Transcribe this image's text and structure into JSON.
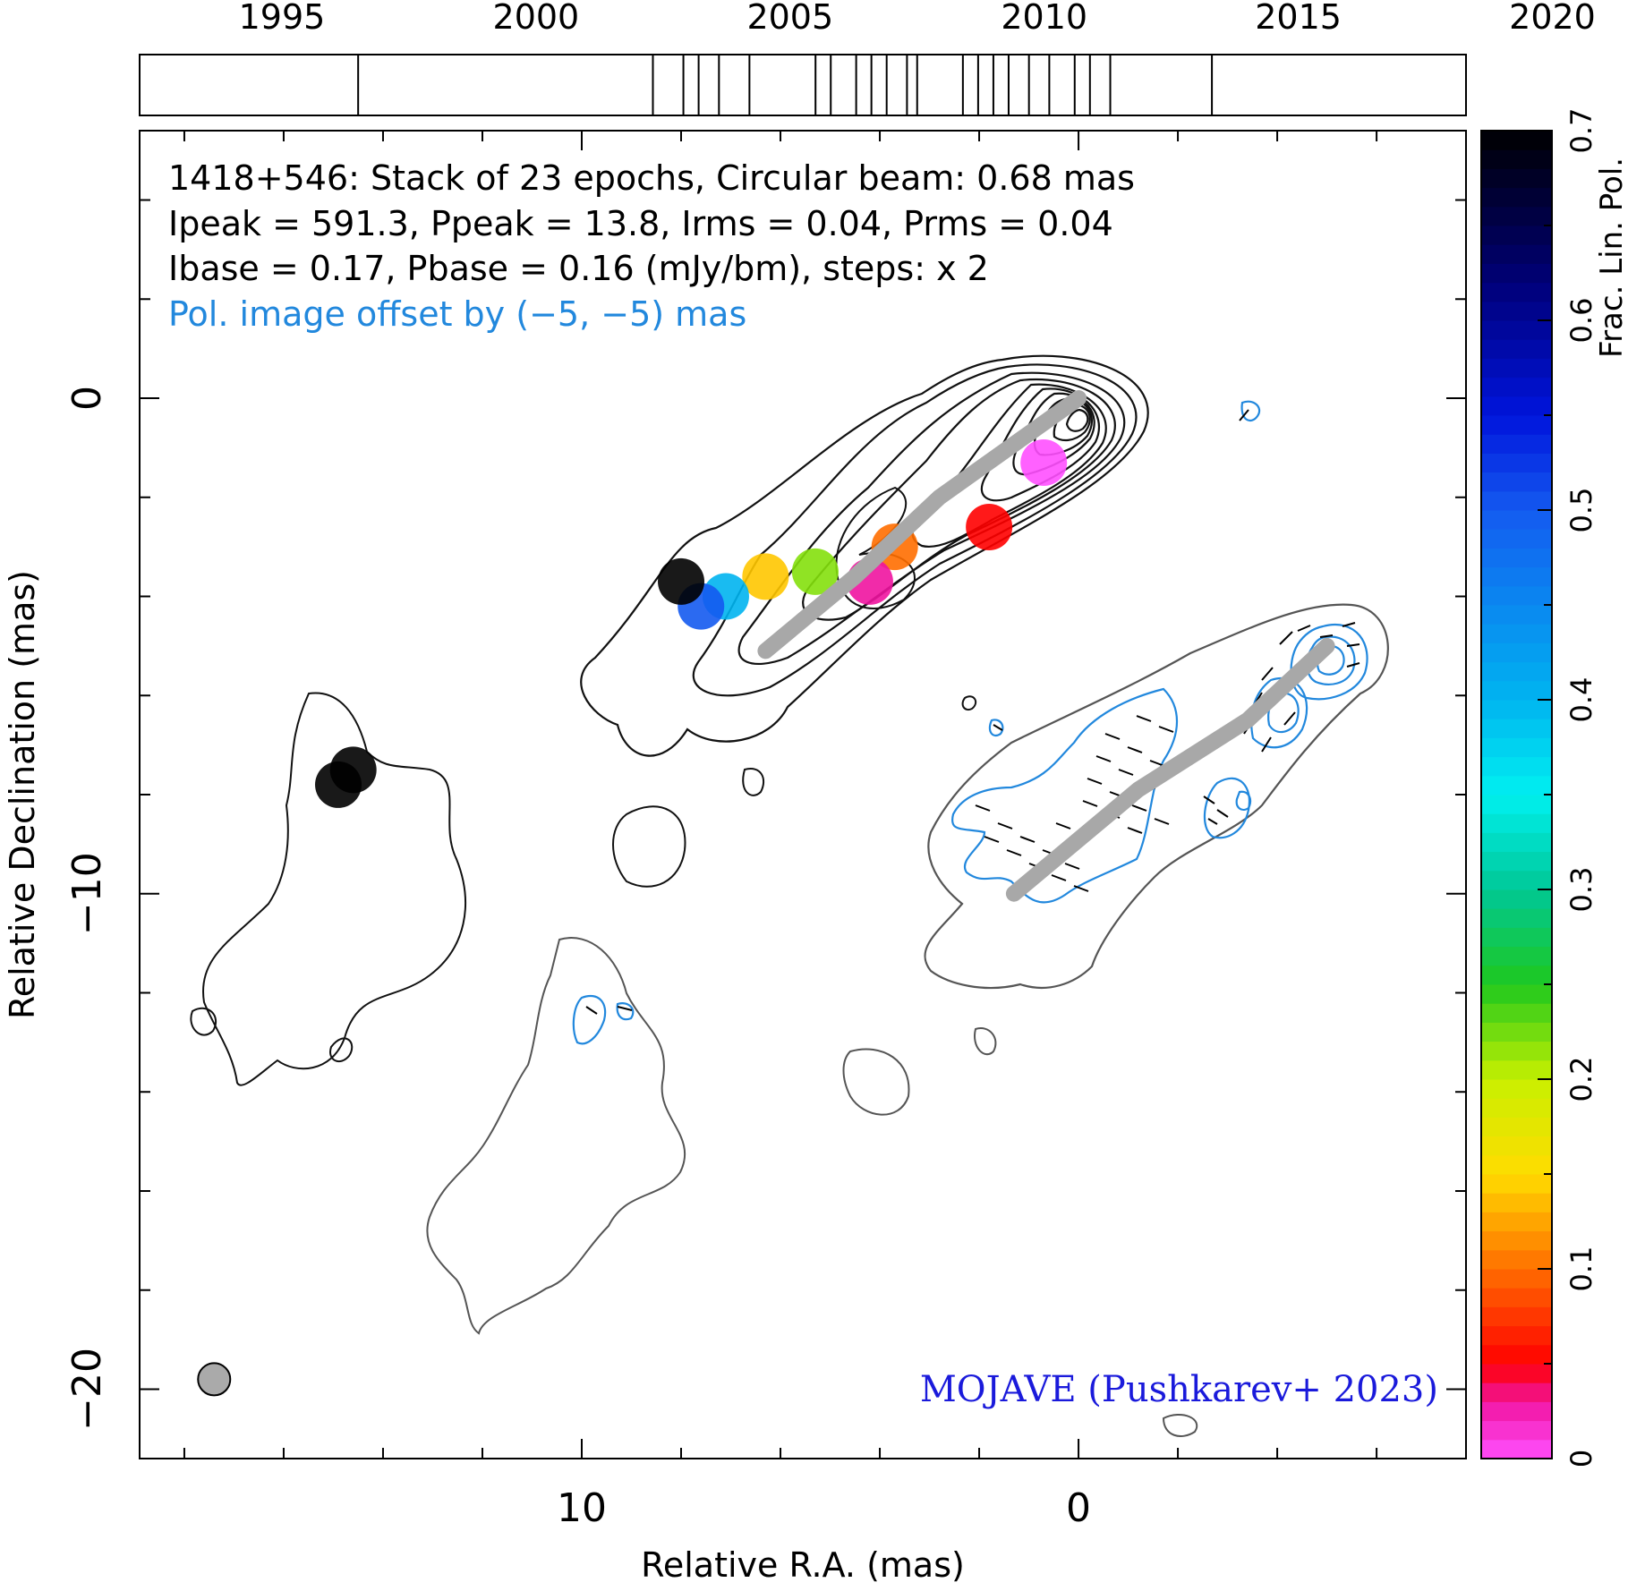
{
  "chart_data": {
    "type": "contour",
    "title": "1418+546: Stack of 23 epochs, Circular beam: 0.68 mas",
    "info_lines": [
      "Ipeak = 591.3, Ppeak = 13.8, Irms = 0.04, Prms = 0.04",
      "Ibase = 0.17, Pbase = 0.16 (mJy/bm), steps: x 2"
    ],
    "offset_note": "Pol. image offset by (−5, −5) mas",
    "credit": "MOJAVE (Pushkarev+ 2023)",
    "xlabel": "Relative R.A. (mas)",
    "ylabel": "Relative Declination (mas)",
    "xlim": [
      18.9,
      -7.8
    ],
    "ylim": [
      -21.4,
      5.4
    ],
    "xticks": [
      10,
      0
    ],
    "yticks": [
      0,
      -10,
      -20
    ],
    "xtick_labels": [
      "10",
      "0"
    ],
    "ytick_labels": [
      "0",
      "−10",
      "−20"
    ],
    "epochs": {
      "range": [
        1992.2,
        2018.3
      ],
      "tick_labels": [
        "1995",
        "2000",
        "2005",
        "2010",
        "2015",
        "2020"
      ],
      "ticks": [
        1995,
        2000,
        2005,
        2010,
        2015,
        2020
      ],
      "dates": [
        1996.5,
        2002.3,
        2002.9,
        2003.2,
        2003.6,
        2004.2,
        2005.5,
        2005.8,
        2006.3,
        2006.6,
        2006.9,
        2007.3,
        2007.5,
        2008.4,
        2008.7,
        2009.0,
        2009.3,
        2009.7,
        2010.1,
        2010.6,
        2010.9,
        2011.3,
        2013.3
      ]
    },
    "colorbar": {
      "label": "Frac. Lin. Pol.",
      "range": [
        0,
        0.7
      ],
      "ticks": [
        0,
        0.1,
        0.2,
        0.3,
        0.4,
        0.5,
        0.6,
        0.7
      ],
      "tick_labels": [
        "0",
        "0.1",
        "0.2",
        "0.3",
        "0.4",
        "0.5",
        "0.6",
        "0.7"
      ]
    },
    "beam_diameter_mas": 0.68,
    "ridgelines": [
      {
        "name": "total intensity",
        "points": [
          [
            6.3,
            -5.1
          ],
          [
            4.5,
            -3.6
          ],
          [
            2.8,
            -2.0
          ],
          [
            0.0,
            0.0
          ]
        ]
      },
      {
        "name": "polarization",
        "points": [
          [
            1.3,
            -10.0
          ],
          [
            -1.2,
            -7.9
          ],
          [
            -3.4,
            -6.5
          ],
          [
            -5.0,
            -5.0
          ]
        ]
      }
    ],
    "fpol_blobs": [
      {
        "x": 0.7,
        "y": -1.3,
        "value": 0.0
      },
      {
        "x": 3.7,
        "y": -3.0,
        "value": 0.1
      },
      {
        "x": 4.2,
        "y": -3.7,
        "value": 0.03
      },
      {
        "x": 5.3,
        "y": -3.5,
        "value": 0.22
      },
      {
        "x": 6.3,
        "y": -3.6,
        "value": 0.14
      },
      {
        "x": 7.1,
        "y": -4.0,
        "value": 0.4
      },
      {
        "x": 7.6,
        "y": -4.2,
        "value": 0.5
      },
      {
        "x": 8.0,
        "y": -3.7,
        "value": 0.7
      },
      {
        "x": 1.8,
        "y": -2.6,
        "value": 0.05
      },
      {
        "x": 14.6,
        "y": -7.5,
        "value": 0.7
      },
      {
        "x": 14.9,
        "y": -7.8,
        "value": 0.7
      }
    ]
  }
}
